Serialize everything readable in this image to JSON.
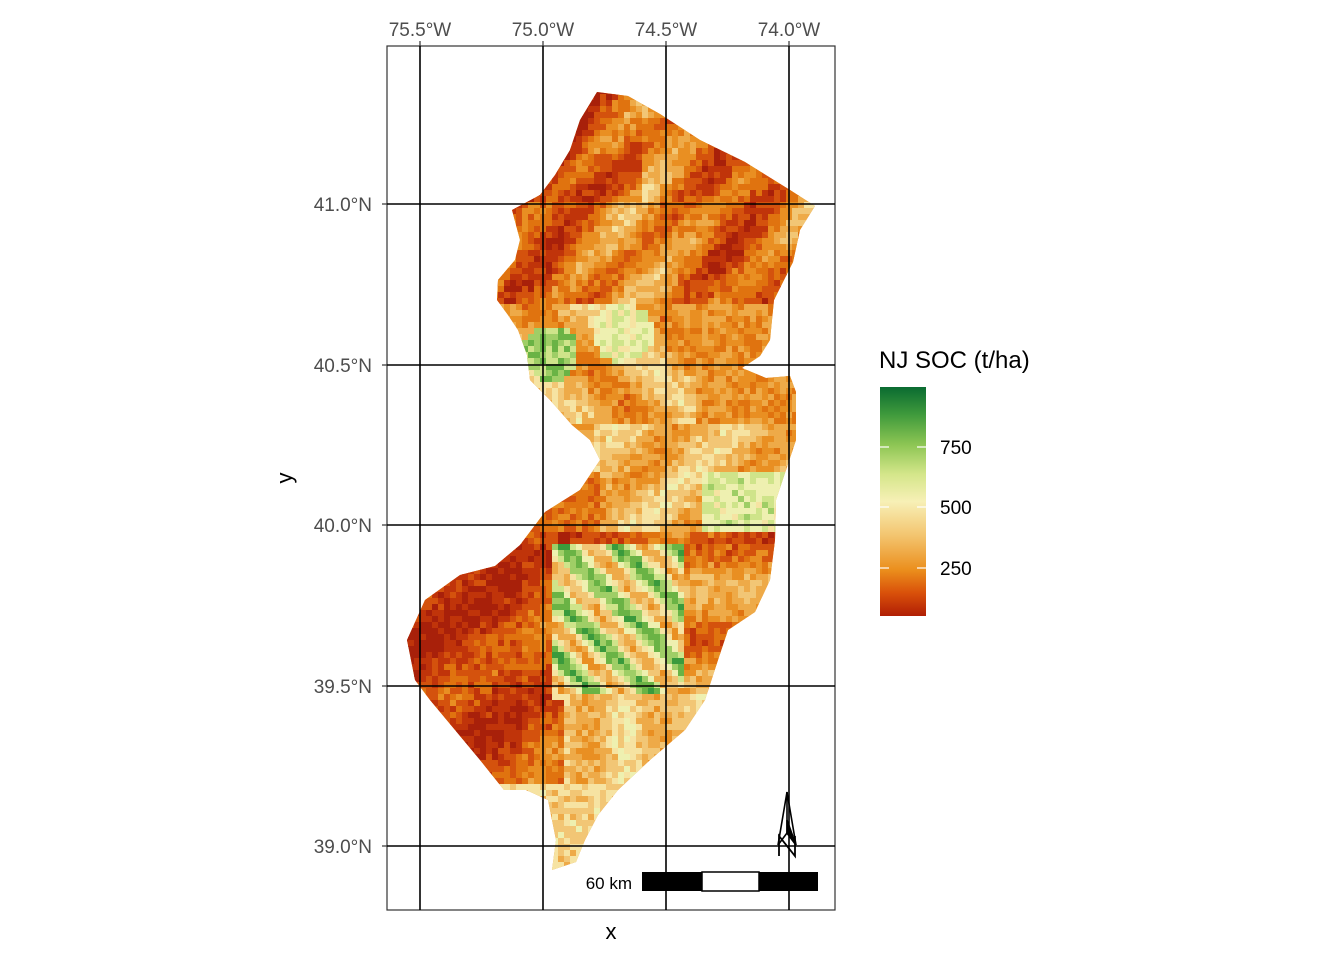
{
  "map": {
    "x_axis_title": "x",
    "y_axis_title": "y",
    "longitude_ticks": [
      "75.5°W",
      "75.0°W",
      "74.5°W",
      "74.0°W"
    ],
    "latitude_ticks": [
      "41.0°N",
      "40.5°N",
      "40.0°N",
      "39.5°N",
      "39.0°N"
    ],
    "scale_bar_label": "60 km",
    "north_arrow": "north-arrow-icon",
    "region": "New Jersey"
  },
  "legend": {
    "title": "NJ SOC (t/ha)",
    "labels": [
      "750",
      "500",
      "250"
    ],
    "colors": [
      "#006837",
      "#1a9850",
      "#66bd63",
      "#a6d96a",
      "#d9ef8b",
      "#ffffbf",
      "#fee08b",
      "#f4a742",
      "#e37a11",
      "#d24e0b",
      "#a50026"
    ]
  },
  "palette": {
    "low": "#b01e05",
    "mid_low": "#e88a1a",
    "mid": "#f6e7a0",
    "high": "#6ab345",
    "very_high": "#1a7a36"
  }
}
